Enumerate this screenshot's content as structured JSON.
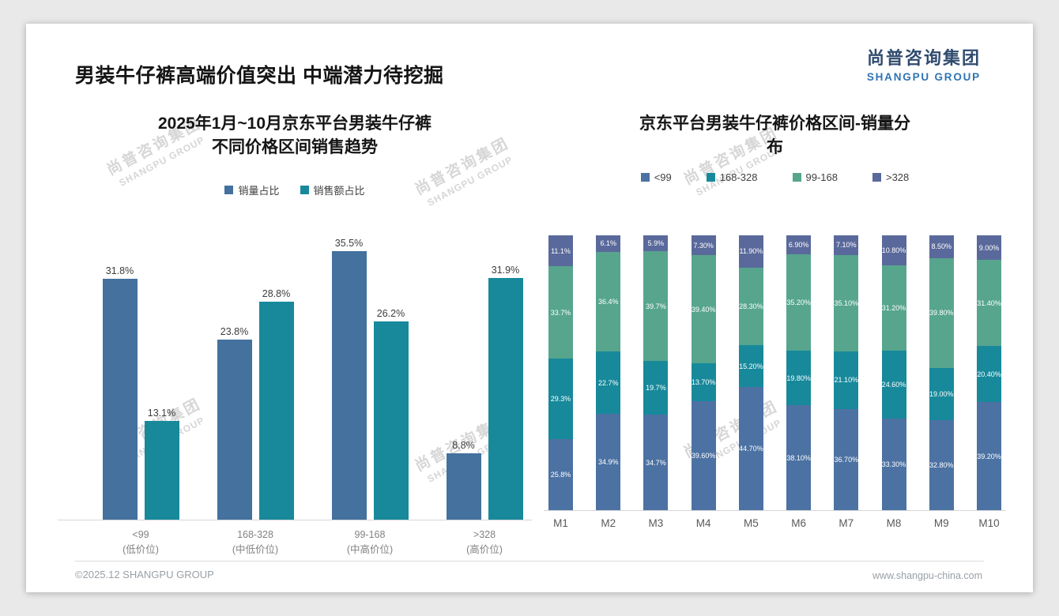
{
  "slide": {
    "title": "男装牛仔裤高端价值突出 中端潜力待挖掘",
    "logo_cn": "尚普咨询集团",
    "logo_en": "SHANGPU GROUP",
    "watermark_cn": "尚普咨询集团",
    "watermark_en": "SHANGPU GROUP",
    "footer_left": "©2025.12 SHANGPU GROUP",
    "footer_right": "www.shangpu-china.com"
  },
  "chart_data": [
    {
      "type": "bar",
      "subtype": "grouped",
      "title": "2025年1月~10月京东平台男装牛仔裤不同价格区间销售趋势",
      "title_lines": [
        "2025年1月~10月京东平台男装牛仔裤",
        "不同价格区间销售趋势"
      ],
      "categories": [
        "<99",
        "168-328",
        "99-168",
        ">328"
      ],
      "category_sublabels": [
        "(低价位)",
        "(中低价位)",
        "(中高价位)",
        "(高价位)"
      ],
      "series": [
        {
          "name": "销量占比",
          "color": "#44719e",
          "values": [
            31.8,
            23.8,
            35.5,
            8.8
          ],
          "labels": [
            "31.8%",
            "23.8%",
            "35.5%",
            "8.8%"
          ]
        },
        {
          "name": "销售额占比",
          "color": "#17899b",
          "values": [
            13.1,
            28.8,
            26.2,
            31.9
          ],
          "labels": [
            "13.1%",
            "28.8%",
            "26.2%",
            "31.9%"
          ]
        }
      ],
      "ylim": [
        0,
        40
      ],
      "grid": false,
      "legend_position": "top",
      "unit": "%"
    },
    {
      "type": "bar",
      "subtype": "stacked-100",
      "title": "京东平台男装牛仔裤价格区间-销量分布",
      "title_lines": [
        "京东平台男装牛仔裤价格区间-销量分",
        "布"
      ],
      "categories": [
        "M1",
        "M2",
        "M3",
        "M4",
        "M5",
        "M6",
        "M7",
        "M8",
        "M9",
        "M10"
      ],
      "series": [
        {
          "name": "<99",
          "color": "#4c72a3",
          "values": [
            25.8,
            34.9,
            34.7,
            39.6,
            44.7,
            38.1,
            36.7,
            33.3,
            32.8,
            39.2
          ],
          "labels": [
            "25.8%",
            "34.9%",
            "34.7%",
            "39.60%",
            "44.70%",
            "38.10%",
            "36.70%",
            "33.30%",
            "32.80%",
            "39.20%"
          ]
        },
        {
          "name": "168-328",
          "color": "#17899b",
          "values": [
            29.3,
            22.7,
            19.7,
            13.7,
            15.2,
            19.8,
            21.1,
            24.6,
            19.0,
            20.4
          ],
          "labels": [
            "29.3%",
            "22.7%",
            "19.7%",
            "13.70%",
            "15.20%",
            "19.80%",
            "21.10%",
            "24.60%",
            "19.00%",
            "20.40%"
          ]
        },
        {
          "name": "99-168",
          "color": "#57a58d",
          "values": [
            33.7,
            36.4,
            39.7,
            39.4,
            28.3,
            35.2,
            35.1,
            31.2,
            39.8,
            31.4
          ],
          "labels": [
            "33.7%",
            "36.4%",
            "39.7%",
            "39.40%",
            "28.30%",
            "35.20%",
            "35.10%",
            "31.20%",
            "39.80%",
            "31.40%"
          ]
        },
        {
          "name": ">328",
          "color": "#5a699b",
          "values": [
            11.1,
            6.1,
            5.9,
            7.3,
            11.9,
            6.9,
            7.1,
            10.8,
            8.5,
            9.0
          ],
          "labels": [
            "11.1%",
            "6.1%",
            "5.9%",
            "7.30%",
            "11.90%",
            "6.90%",
            "7.10%",
            "10.80%",
            "8.50%",
            "9.00%"
          ]
        }
      ],
      "ylim": [
        0,
        100
      ],
      "grid": false,
      "legend_position": "top",
      "unit": "%"
    }
  ]
}
